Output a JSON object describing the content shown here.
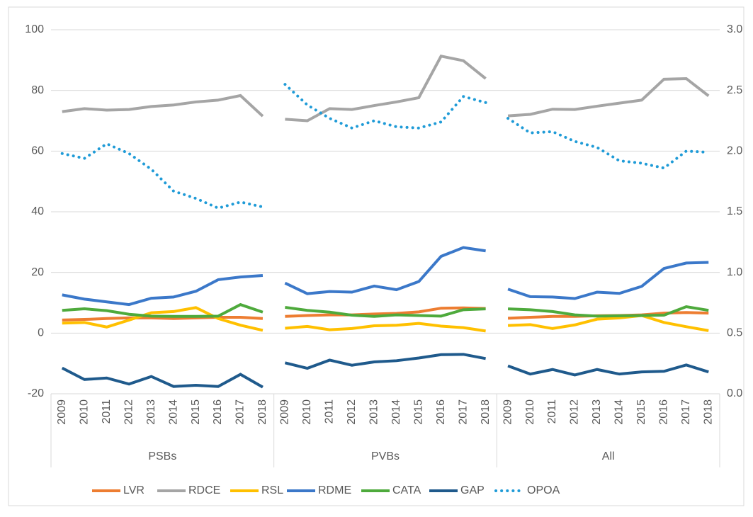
{
  "chart_data": {
    "type": "line",
    "groups": [
      {
        "name": "PSBs",
        "categories": [
          "2009",
          "2010",
          "2011",
          "2012",
          "2013",
          "2014",
          "2015",
          "2016",
          "2017",
          "2018"
        ]
      },
      {
        "name": "PVBs",
        "categories": [
          "2009",
          "2010",
          "2011",
          "2012",
          "2013",
          "2014",
          "2015",
          "2016",
          "2017",
          "2018"
        ]
      },
      {
        "name": "All",
        "categories": [
          "2009",
          "2010",
          "2011",
          "2012",
          "2013",
          "2014",
          "2015",
          "2016",
          "2017",
          "2018"
        ]
      }
    ],
    "series": [
      {
        "name": "LVR",
        "color": "#ED7D31",
        "values": [
          4.3,
          4.5,
          4.8,
          5,
          5,
          4.8,
          5,
          5.2,
          5.2,
          4.8,
          5.5,
          5.8,
          6,
          6,
          6.3,
          6.5,
          7,
          8.2,
          8.3,
          8.1,
          4.9,
          5.2,
          5.5,
          5.5,
          5.7,
          5.8,
          6,
          6.6,
          6.8,
          6.6
        ]
      },
      {
        "name": "RDCE",
        "color": "#A5A5A5",
        "values": [
          73,
          74,
          73.5,
          73.7,
          74.7,
          75.2,
          76.2,
          76.8,
          78.3,
          71.5,
          70.5,
          70,
          74,
          73.7,
          75,
          76.2,
          77.6,
          91.3,
          89.8,
          83.9,
          71.6,
          72.1,
          73.8,
          73.7,
          74.8,
          75.8,
          76.8,
          83.7,
          83.9,
          78.2
        ]
      },
      {
        "name": "RSL",
        "color": "#FFC000",
        "values": [
          3.3,
          3.5,
          2,
          4.3,
          6.7,
          7.1,
          8.4,
          4.8,
          2.6,
          0.9,
          1.6,
          2.2,
          1.1,
          1.5,
          2.4,
          2.6,
          3.2,
          2.3,
          1.8,
          0.7,
          2.5,
          2.8,
          1.5,
          2.7,
          4.6,
          5,
          5.8,
          3.5,
          2.1,
          0.8
        ]
      },
      {
        "name": "RDME",
        "color": "#3B78C9",
        "values": [
          12.6,
          11.2,
          10.3,
          9.4,
          11.5,
          11.9,
          13.8,
          17.6,
          18.5,
          19,
          16.5,
          13,
          13.7,
          13.5,
          15.5,
          14.3,
          17,
          25.3,
          28.2,
          27.1,
          14.5,
          12,
          11.9,
          11.4,
          13.5,
          13.1,
          15.4,
          21.3,
          23.1,
          23.3
        ]
      },
      {
        "name": "CATA",
        "color": "#4EAA3C",
        "values": [
          7.5,
          8,
          7.4,
          6.2,
          5.6,
          5.5,
          5.5,
          5.6,
          9.4,
          6.9,
          8.5,
          7.5,
          6.9,
          5.9,
          5.5,
          6,
          5.8,
          5.6,
          7.7,
          8,
          8,
          7.7,
          7.1,
          6,
          5.6,
          5.7,
          5.8,
          5.9,
          8.7,
          7.5
        ]
      },
      {
        "name": "GAP",
        "color": "#1F5A8C",
        "values": [
          -11.5,
          -15.3,
          -14.8,
          -16.8,
          -14.3,
          -17.6,
          -17.2,
          -17.6,
          -13.6,
          -17.8,
          -9.8,
          -11.6,
          -8.9,
          -10.6,
          -9.5,
          -9.1,
          -8.2,
          -7.1,
          -7,
          -8.4,
          -10.8,
          -13.5,
          -12,
          -13.8,
          -12,
          -13.5,
          -12.8,
          -12.6,
          -10.5,
          -12.8
        ]
      },
      {
        "name": "OPOA",
        "color": "#1F9BD7",
        "dotted": true,
        "axis": "y2",
        "values": [
          1.98,
          1.94,
          2.06,
          1.98,
          1.85,
          1.67,
          1.61,
          1.53,
          1.58,
          1.54,
          2.55,
          2.38,
          2.27,
          2.19,
          2.25,
          2.2,
          2.19,
          2.24,
          2.45,
          2.4,
          2.27,
          2.15,
          2.16,
          2.08,
          2.03,
          1.92,
          1.9,
          1.86,
          2.0,
          1.99
        ]
      }
    ],
    "ylim": [
      -20,
      100
    ],
    "yticks": [
      -20,
      0,
      20,
      40,
      60,
      80,
      100
    ],
    "y2lim": [
      0,
      3
    ],
    "y2ticks": [
      {
        "value": 0,
        "label": "0.0"
      },
      0.5,
      {
        "value": 1,
        "label": "1.0"
      },
      {
        "value": 1.5,
        "label": "1.5"
      },
      {
        "value": 2,
        "label": "2.0"
      },
      2.5,
      {
        "value": 3,
        "label": "3.0"
      }
    ],
    "grid": true,
    "legend": "bottom"
  }
}
